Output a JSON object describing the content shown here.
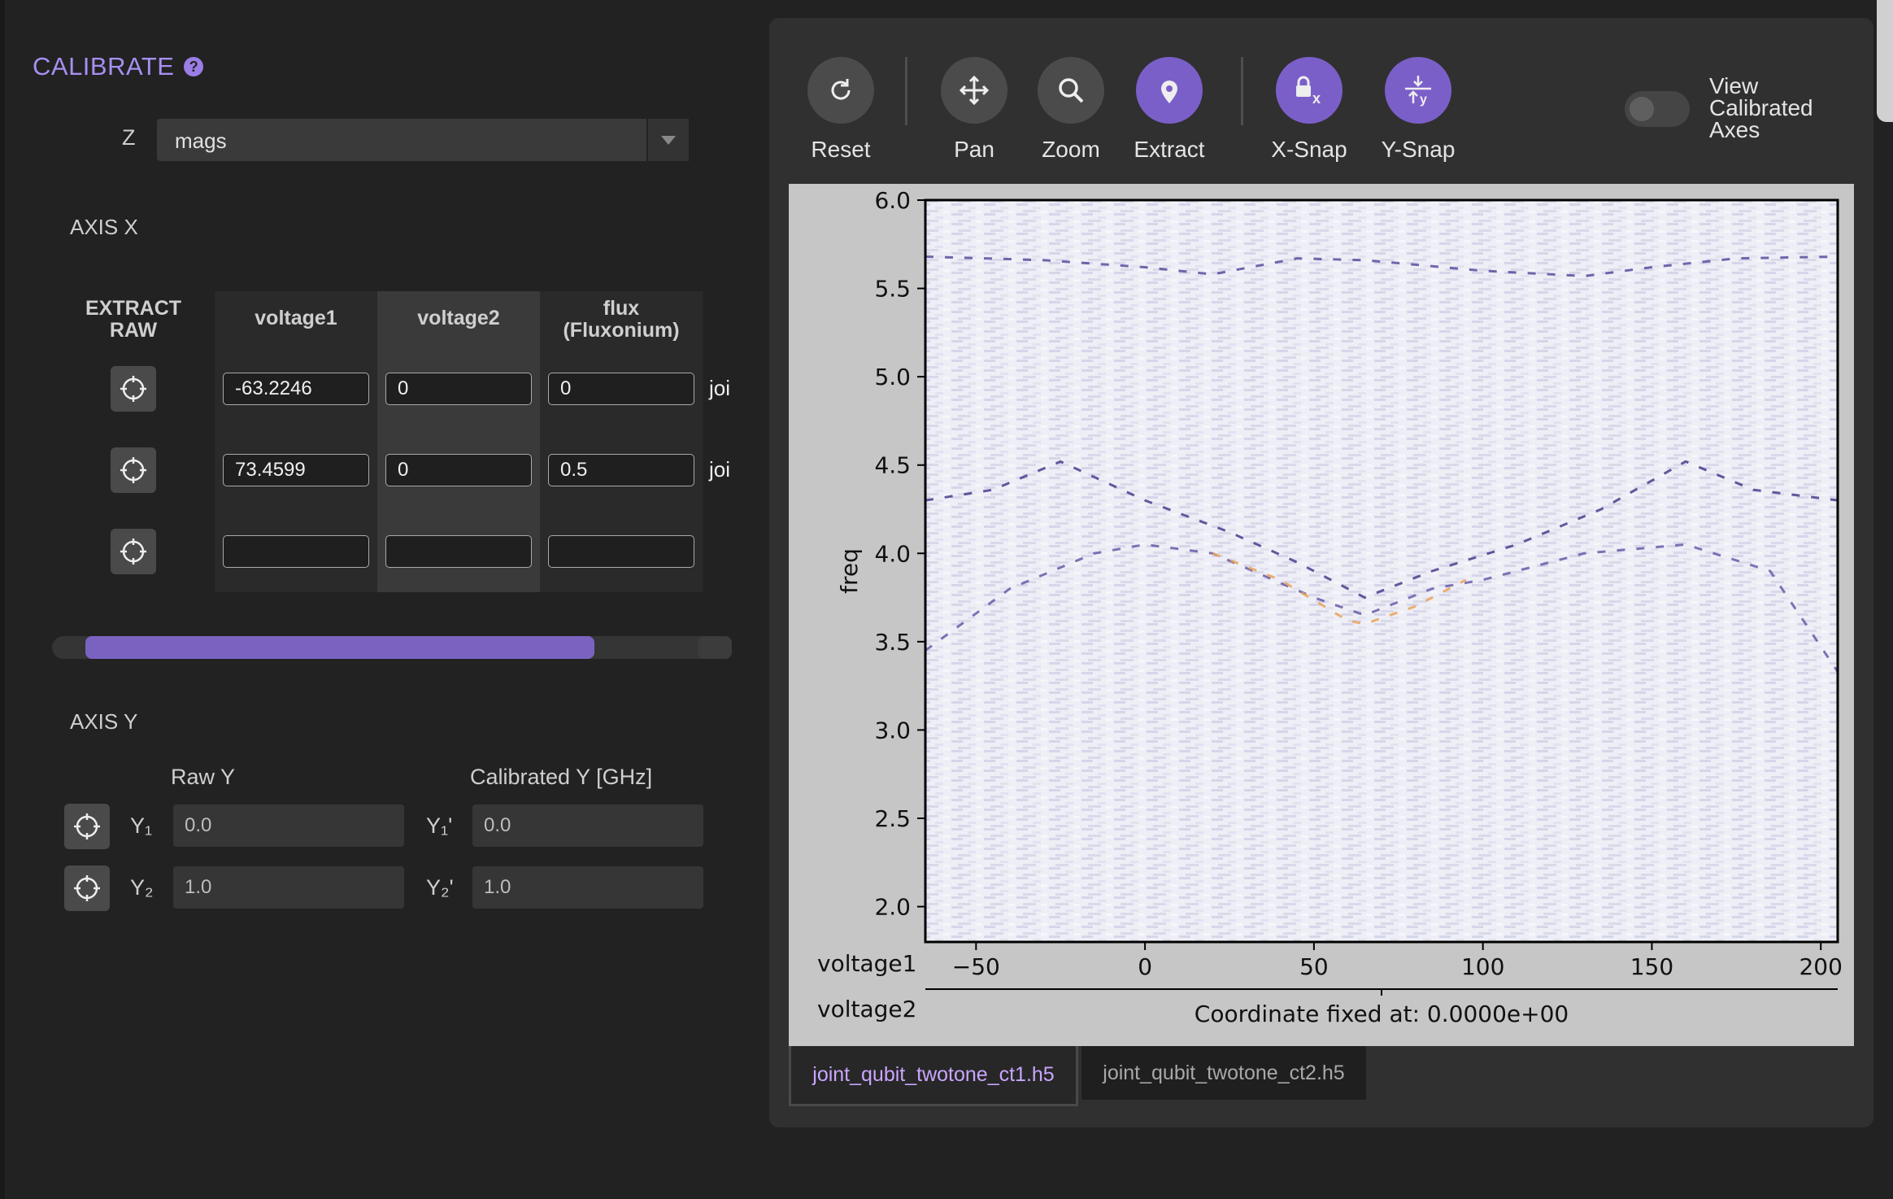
{
  "calibrate": {
    "title": "CALIBRATE",
    "help_icon": "help-icon"
  },
  "z_select": {
    "label": "Z",
    "value": "mags"
  },
  "axis_x": {
    "title": "AXIS X",
    "extract_header": [
      "EXTRACT",
      "RAW"
    ],
    "columns": [
      {
        "name": "voltage1",
        "values": [
          "-63.2246",
          "73.4599",
          ""
        ]
      },
      {
        "name": "voltage2",
        "values": [
          "0",
          "0",
          ""
        ]
      },
      {
        "name": [
          "flux",
          "(Fluxonium)"
        ],
        "values": [
          "0",
          "0.5",
          ""
        ]
      }
    ],
    "trailing": [
      "joi",
      "joi"
    ]
  },
  "axis_y": {
    "title": "AXIS Y",
    "raw_header": "Raw Y",
    "cal_header": "Calibrated Y [GHz]",
    "rows": [
      {
        "raw_label": "Y₁",
        "raw_value": "0.0",
        "cal_label": "Y₁'",
        "cal_value": "0.0"
      },
      {
        "raw_label": "Y₂",
        "raw_value": "1.0",
        "cal_label": "Y₂'",
        "cal_value": "1.0"
      }
    ]
  },
  "toolbar": {
    "reset": "Reset",
    "pan": "Pan",
    "zoom": "Zoom",
    "extract": "Extract",
    "xsnap": "X-Snap",
    "ysnap": "Y-Snap",
    "view_calibrated": [
      "View",
      "Calibrated",
      "Axes"
    ],
    "view_calibrated_on": false
  },
  "colors": {
    "accent": "#7b5fc9",
    "accent_text": "#a78ff0",
    "tool_gray": "#4b4b4b",
    "panel_bg": "#303030"
  },
  "tabs": [
    "joint_qubit_twotone_ct1.h5",
    "joint_qubit_twotone_ct2.h5"
  ],
  "plot": {
    "ylabel": "freq",
    "xlabel_1": "voltage1",
    "xlabel_2": "voltage2",
    "fixed_note": "Coordinate fixed at: 0.0000e+00"
  },
  "chart_data": {
    "type": "heatmap",
    "xlim": [
      -65,
      205
    ],
    "ylim": [
      1.8,
      6.0
    ],
    "x_ticks": [
      -50,
      0,
      50,
      100,
      150,
      200
    ],
    "x_tick_labels": [
      "−50",
      "0",
      "50",
      "100",
      "150",
      "200"
    ],
    "y_ticks": [
      2.0,
      2.5,
      3.0,
      3.5,
      4.0,
      4.5,
      5.0,
      5.5,
      6.0
    ],
    "y_tick_labels": [
      "2.0",
      "2.5",
      "3.0",
      "3.5",
      "4.0",
      "4.5",
      "5.0",
      "5.5",
      "6.0"
    ],
    "ylabel": "freq",
    "xlabel": "voltage1",
    "colormap": "purple-white-orange",
    "features": [
      {
        "name": "upper band",
        "x": [
          -65,
          -30,
          0,
          20,
          45,
          65,
          100,
          130,
          150,
          175,
          205
        ],
        "y": [
          5.68,
          5.66,
          5.62,
          5.58,
          5.67,
          5.66,
          5.6,
          5.57,
          5.62,
          5.67,
          5.68
        ]
      },
      {
        "name": "mid band",
        "x": [
          -65,
          -45,
          -25,
          0,
          25,
          45,
          65,
          85,
          110,
          135,
          160,
          180,
          205
        ],
        "y": [
          4.3,
          4.36,
          4.52,
          4.3,
          4.12,
          3.95,
          3.75,
          3.9,
          4.05,
          4.25,
          4.52,
          4.36,
          4.3
        ]
      },
      {
        "name": "lower band",
        "x": [
          -65,
          -40,
          -15,
          0,
          20,
          50,
          65,
          85,
          100,
          130,
          160,
          185,
          205
        ],
        "y": [
          3.45,
          3.8,
          4.0,
          4.05,
          4.0,
          3.75,
          3.65,
          3.8,
          3.85,
          4.0,
          4.05,
          3.9,
          3.33
        ]
      },
      {
        "name": "arc",
        "x": [
          20,
          40,
          60,
          65,
          80,
          95
        ],
        "y": [
          4.0,
          3.85,
          3.62,
          3.6,
          3.7,
          3.85
        ]
      }
    ]
  }
}
